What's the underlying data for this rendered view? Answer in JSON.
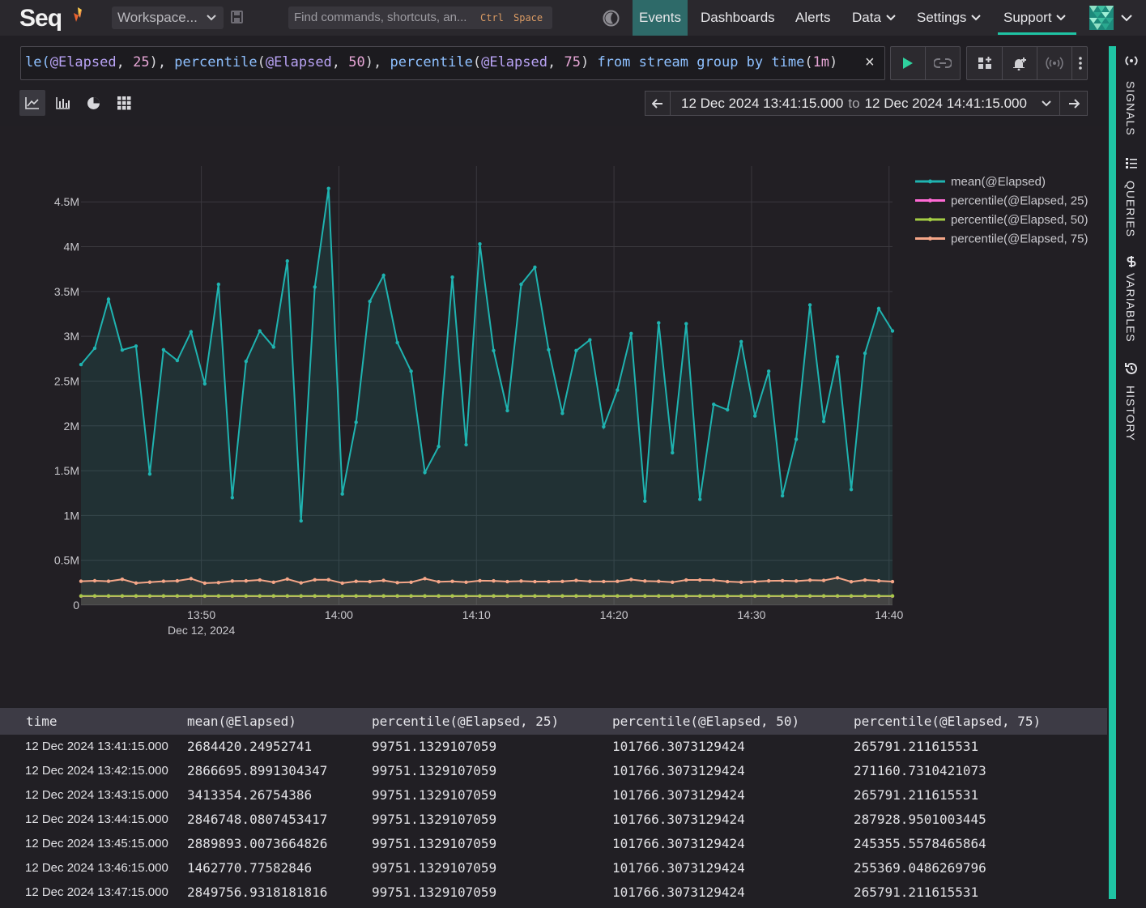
{
  "header": {
    "logo_text": "Seq",
    "workspace_label": "Workspace...",
    "command_placeholder": "Find commands, shortcuts, an...",
    "command_shortcut_1": "Ctrl",
    "command_shortcut_2": "Space",
    "nav": [
      {
        "label": "Events",
        "active": true
      },
      {
        "label": "Dashboards"
      },
      {
        "label": "Alerts"
      },
      {
        "label": "Data"
      },
      {
        "label": "Settings"
      },
      {
        "label": "Support"
      }
    ]
  },
  "query": {
    "parts": [
      {
        "t": "le(",
        "c": "fn"
      },
      {
        "t": "@Elapsed",
        "c": "prop"
      },
      {
        "t": ", ",
        "c": "punc"
      },
      {
        "t": "25",
        "c": "num"
      },
      {
        "t": "), ",
        "c": "punc"
      },
      {
        "t": "percentile",
        "c": "fn"
      },
      {
        "t": "(",
        "c": "punc"
      },
      {
        "t": "@Elapsed",
        "c": "prop"
      },
      {
        "t": ", ",
        "c": "punc"
      },
      {
        "t": "50",
        "c": "num"
      },
      {
        "t": "), ",
        "c": "punc"
      },
      {
        "t": "percentile",
        "c": "fn"
      },
      {
        "t": "(",
        "c": "punc"
      },
      {
        "t": "@Elapsed",
        "c": "prop"
      },
      {
        "t": ", ",
        "c": "punc"
      },
      {
        "t": "75",
        "c": "num"
      },
      {
        "t": ") ",
        "c": "punc"
      },
      {
        "t": "from stream group by time",
        "c": "kw"
      },
      {
        "t": "(",
        "c": "punc"
      },
      {
        "t": "1m",
        "c": "num"
      },
      {
        "t": ")",
        "c": "punc"
      }
    ],
    "clear_glyph": "×"
  },
  "range": {
    "from": "12 Dec 2024 13:41:15.000",
    "to_label": "to",
    "to": "12 Dec 2024 14:41:15.000"
  },
  "sidebar": {
    "tabs": [
      {
        "label": "SIGNALS"
      },
      {
        "label": "QUERIES"
      },
      {
        "label": "VARIABLES"
      },
      {
        "label": "HISTORY"
      }
    ]
  },
  "colors": {
    "mean": "#1fb3b0",
    "p25": "#ff6ad5",
    "p50": "#a4cc44",
    "p75": "#f5a688",
    "accent": "#1fc4a4"
  },
  "chart_data": {
    "type": "line",
    "x_labels": [
      "13:50",
      "14:00",
      "14:10",
      "14:20",
      "14:30",
      "14:40"
    ],
    "x_sublabel": "Dec 12, 2024",
    "y_ticks": [
      "0",
      "0.5M",
      "1M",
      "1.5M",
      "2M",
      "2.5M",
      "3M",
      "3.5M",
      "4M",
      "4.5M"
    ],
    "ylim": [
      0,
      4900000
    ],
    "x_start": "13:41:15",
    "x_step_minutes": 1,
    "series": [
      {
        "name": "mean(@Elapsed)",
        "color": "#1fb3b0",
        "values": [
          2684420,
          2866696,
          3413354,
          2846748,
          2889893,
          1462771,
          2849757,
          2730000,
          3050000,
          2470000,
          3580000,
          1200000,
          2720000,
          3060000,
          2880000,
          3840000,
          940000,
          3550000,
          4650000,
          1240000,
          2040000,
          3390000,
          3680000,
          2930000,
          2610000,
          1480000,
          1770000,
          3660000,
          1790000,
          4030000,
          2840000,
          2170000,
          3580000,
          3770000,
          2850000,
          2140000,
          2840000,
          2960000,
          1990000,
          2400000,
          3030000,
          1160000,
          3150000,
          1700000,
          3140000,
          1180000,
          2240000,
          2180000,
          2940000,
          2110000,
          2610000,
          1220000,
          1850000,
          3350000,
          2050000,
          2770000,
          1290000,
          2810000,
          3310000,
          3060000
        ]
      },
      {
        "name": "percentile(@Elapsed, 25)",
        "color": "#ff6ad5",
        "values": [
          99751,
          99751,
          99751,
          99751,
          99751,
          99751,
          99751,
          99751,
          99751,
          99751,
          99751,
          99751,
          99751,
          99751,
          99751,
          99751,
          99751,
          99751,
          99751,
          99751,
          99751,
          99751,
          99751,
          99751,
          99751,
          99751,
          99751,
          99751,
          99751,
          99751,
          99751,
          99751,
          99751,
          99751,
          99751,
          99751,
          99751,
          99751,
          99751,
          99751,
          99751,
          99751,
          99751,
          99751,
          99751,
          99751,
          99751,
          99751,
          99751,
          99751,
          99751,
          99751,
          99751,
          99751,
          99751,
          99751,
          99751,
          99751,
          99751,
          99751
        ]
      },
      {
        "name": "percentile(@Elapsed, 50)",
        "color": "#a4cc44",
        "values": [
          101766,
          101766,
          101766,
          101766,
          101766,
          101766,
          101766,
          101766,
          101766,
          101766,
          101766,
          101766,
          101766,
          101766,
          101766,
          101766,
          101766,
          101766,
          101766,
          101766,
          101766,
          101766,
          101766,
          101766,
          101766,
          101766,
          101766,
          101766,
          101766,
          101766,
          101766,
          101766,
          101766,
          101766,
          101766,
          101766,
          101766,
          101766,
          101766,
          101766,
          101766,
          101766,
          101766,
          101766,
          101766,
          101766,
          101766,
          101766,
          101766,
          101766,
          101766,
          101766,
          101766,
          101766,
          101766,
          101766,
          101766,
          101766,
          101766,
          101766
        ]
      },
      {
        "name": "percentile(@Elapsed, 75)",
        "color": "#f5a688",
        "values": [
          265791,
          271161,
          265791,
          287929,
          245356,
          255369,
          265791,
          270000,
          295000,
          245000,
          250000,
          268000,
          270000,
          280000,
          255000,
          290000,
          248000,
          282000,
          283000,
          245000,
          265000,
          262000,
          275000,
          250000,
          255000,
          295000,
          260000,
          265000,
          255000,
          272000,
          270000,
          262000,
          268000,
          262000,
          262000,
          264000,
          275000,
          265000,
          263000,
          265000,
          285000,
          268000,
          265000,
          255000,
          280000,
          280000,
          278000,
          262000,
          255000,
          262000,
          270000,
          272000,
          268000,
          278000,
          275000,
          305000,
          260000,
          280000,
          270000,
          262000
        ]
      }
    ]
  },
  "table": {
    "headers": [
      "time",
      "mean(@Elapsed)",
      "percentile(@Elapsed, 25)",
      "percentile(@Elapsed, 50)",
      "percentile(@Elapsed, 75)"
    ],
    "rows": [
      [
        "12 Dec 2024 13:41:15.000",
        "2684420.24952741",
        "99751.1329107059",
        "101766.3073129424",
        "265791.211615531"
      ],
      [
        "12 Dec 2024 13:42:15.000",
        "2866695.8991304347",
        "99751.1329107059",
        "101766.3073129424",
        "271160.7310421073"
      ],
      [
        "12 Dec 2024 13:43:15.000",
        "3413354.26754386",
        "99751.1329107059",
        "101766.3073129424",
        "265791.211615531"
      ],
      [
        "12 Dec 2024 13:44:15.000",
        "2846748.0807453417",
        "99751.1329107059",
        "101766.3073129424",
        "287928.9501003445"
      ],
      [
        "12 Dec 2024 13:45:15.000",
        "2889893.0073664826",
        "99751.1329107059",
        "101766.3073129424",
        "245355.5578465864"
      ],
      [
        "12 Dec 2024 13:46:15.000",
        "1462770.77582846",
        "99751.1329107059",
        "101766.3073129424",
        "255369.0486269796"
      ],
      [
        "12 Dec 2024 13:47:15.000",
        "2849756.9318181816",
        "99751.1329107059",
        "101766.3073129424",
        "265791.211615531"
      ]
    ]
  }
}
